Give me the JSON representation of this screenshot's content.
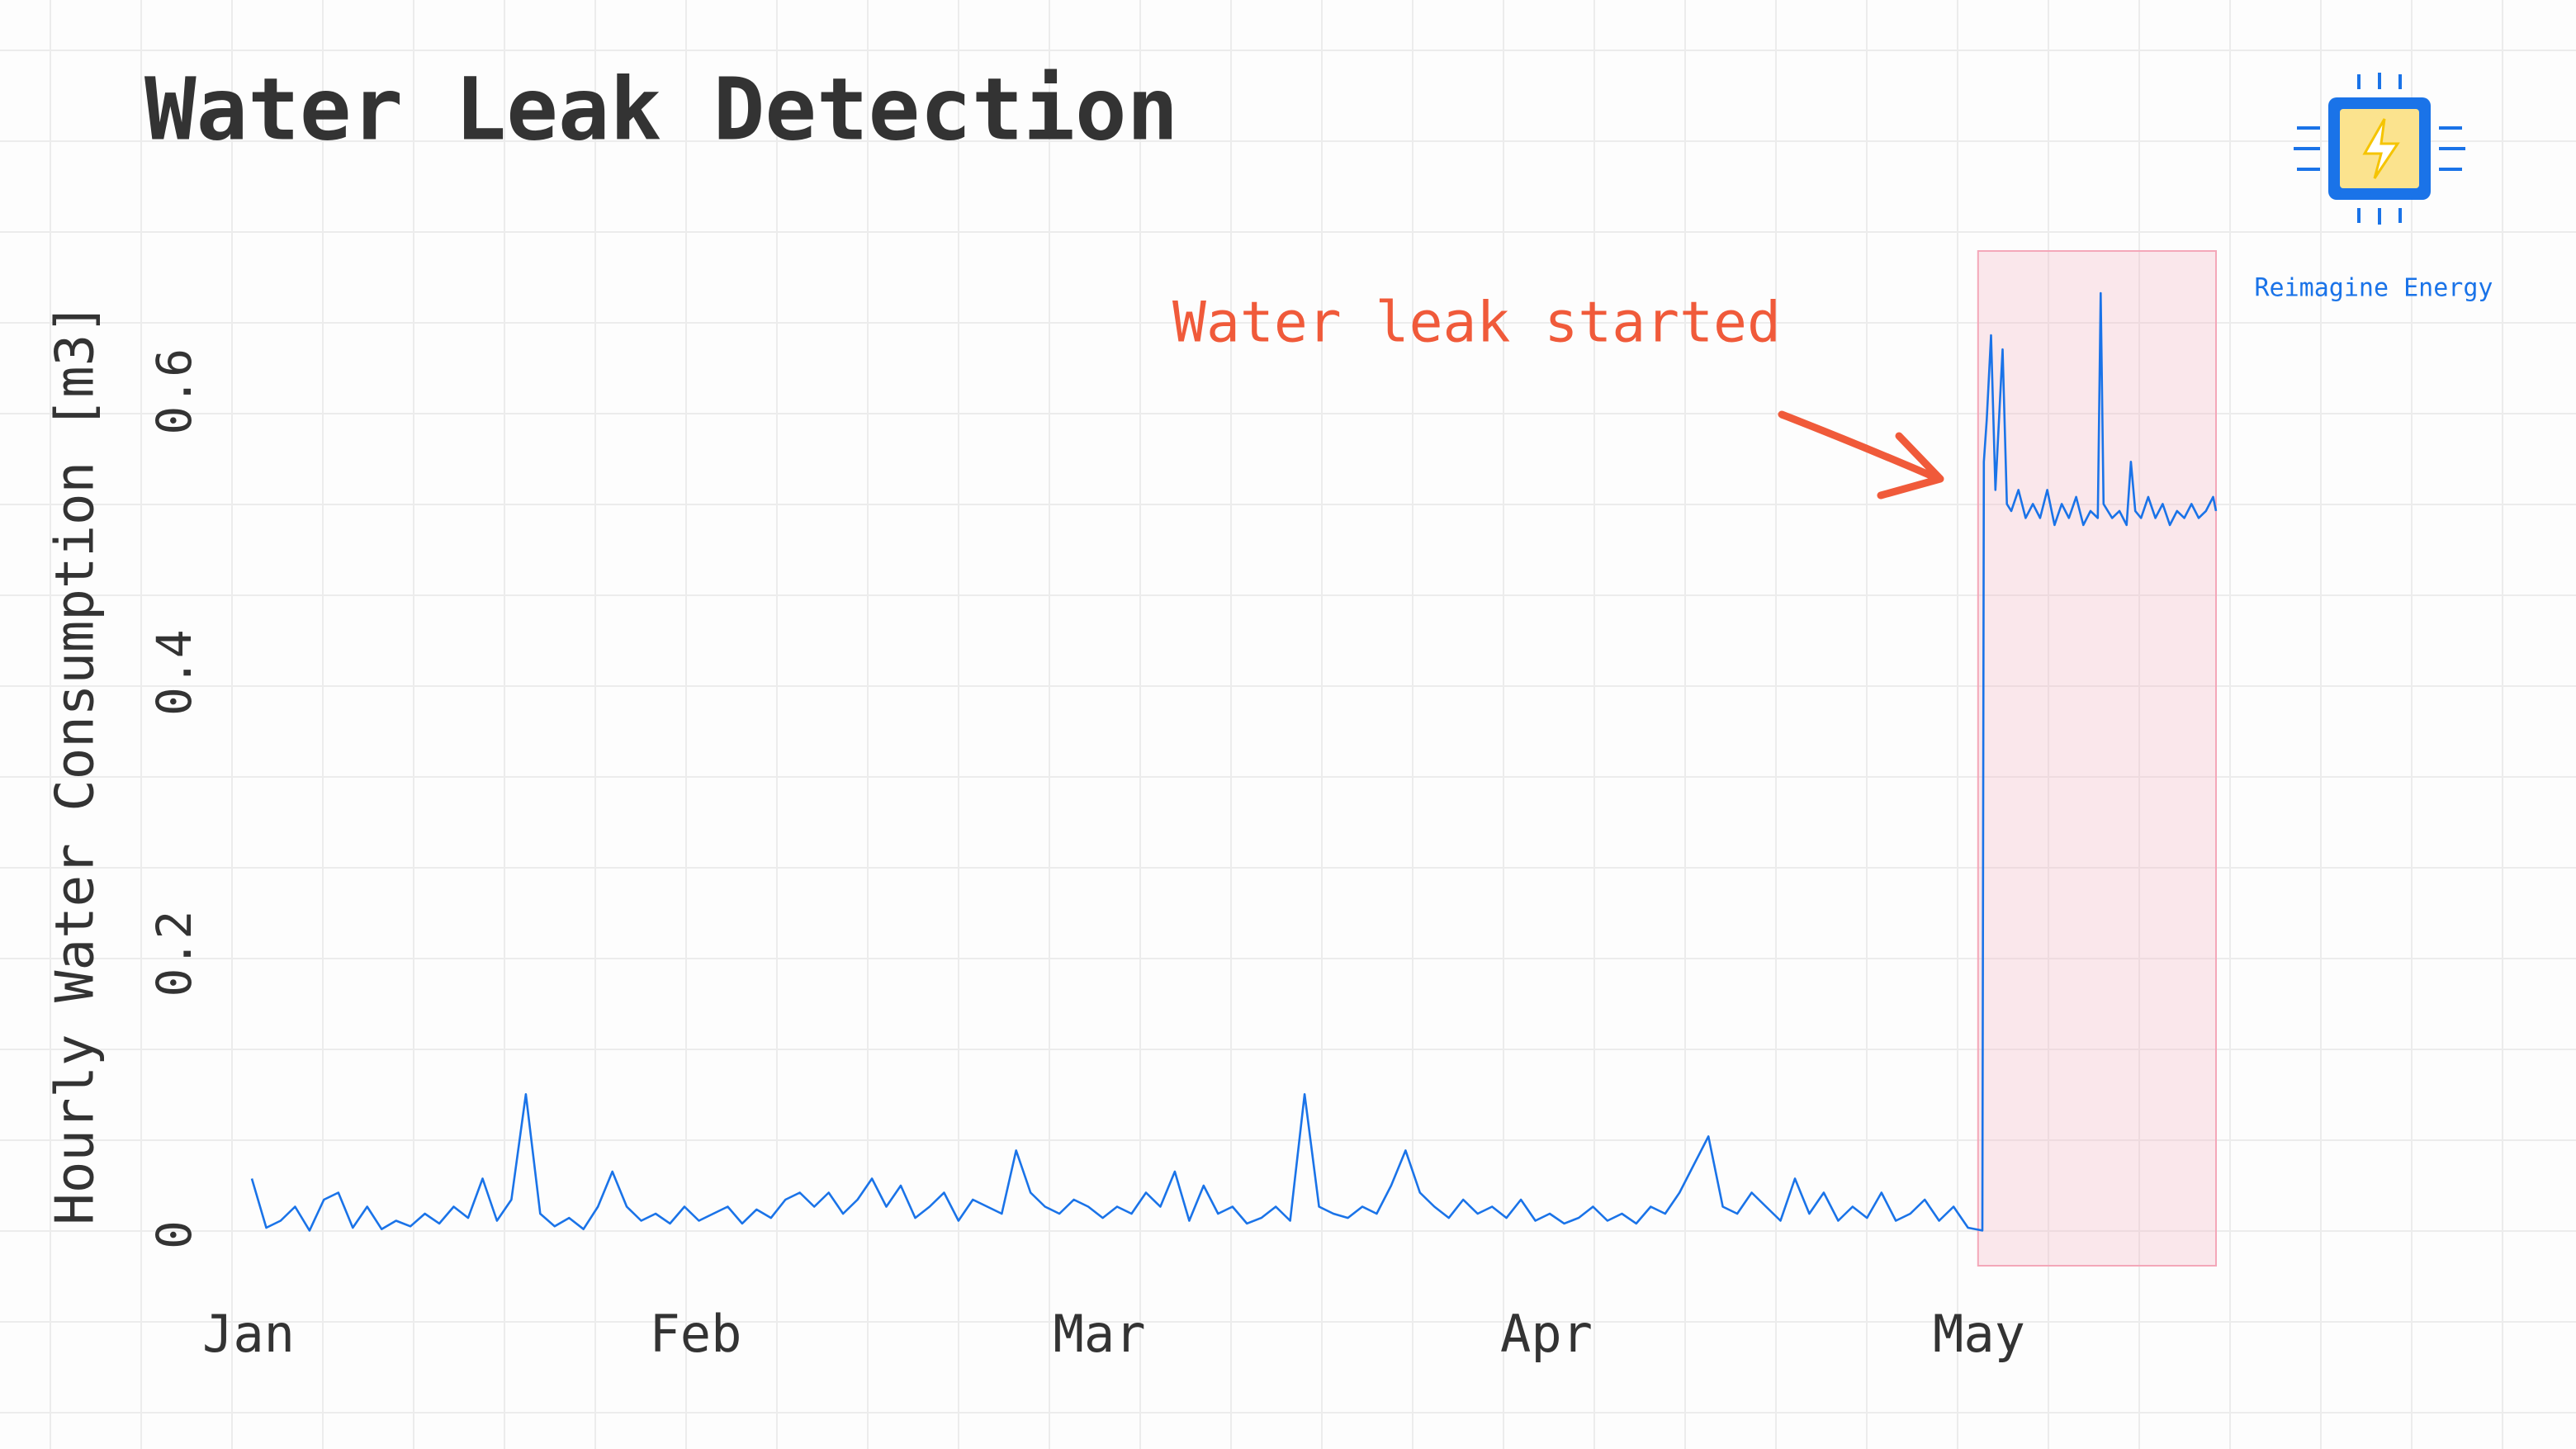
{
  "chart_data": {
    "type": "line",
    "title": "Water Leak Detection",
    "y_label": "Hourly Water Consumption [m3]",
    "annotation": "Water leak started",
    "logo_text": "Reimagine Energy",
    "x": [
      0,
      1,
      2,
      3,
      4,
      5,
      6,
      7,
      8,
      9,
      10,
      11,
      12,
      13,
      14,
      15,
      16,
      17,
      18,
      19,
      20,
      21,
      22,
      23,
      24,
      25,
      26,
      27,
      28,
      29,
      30,
      31,
      32,
      33,
      34,
      35,
      36,
      37,
      38,
      39,
      40,
      41,
      42,
      43,
      44,
      45,
      46,
      47,
      48,
      49,
      50,
      51,
      52,
      53,
      54,
      55,
      56,
      57,
      58,
      59,
      60,
      61,
      62,
      63,
      64,
      65,
      66,
      67,
      68,
      69,
      70,
      71,
      72,
      73,
      74,
      75,
      76,
      77,
      78,
      79,
      80,
      81,
      82,
      83,
      84,
      85,
      86,
      87,
      88,
      89,
      90,
      91,
      92,
      93,
      94,
      95,
      96,
      97,
      98,
      99,
      100,
      101,
      102,
      103,
      104,
      105,
      106,
      107,
      108,
      109,
      110,
      111,
      112,
      113,
      114,
      115,
      116,
      117,
      118,
      119,
      120,
      120.1,
      120.3,
      120.6,
      120.9,
      121.4,
      121.7,
      122,
      122.5,
      123,
      123.5,
      124,
      124.5,
      125,
      125.5,
      126,
      126.5,
      127,
      127.5,
      128,
      128.2,
      128.4,
      129,
      129.5,
      130,
      130.3,
      130.6,
      131,
      131.5,
      132,
      132.5,
      133,
      133.5,
      134,
      134.5,
      135,
      135.5,
      136,
      136.2
    ],
    "series": [
      {
        "color": "#1a73e8",
        "values": [
          0.04,
          0.005,
          0.01,
          0.02,
          0.003,
          0.025,
          0.03,
          0.005,
          0.02,
          0.004,
          0.01,
          0.006,
          0.015,
          0.008,
          0.02,
          0.012,
          0.04,
          0.01,
          0.025,
          0.1,
          0.015,
          0.006,
          0.012,
          0.004,
          0.02,
          0.045,
          0.02,
          0.01,
          0.015,
          0.008,
          0.02,
          0.01,
          0.015,
          0.02,
          0.008,
          0.018,
          0.012,
          0.025,
          0.03,
          0.02,
          0.03,
          0.015,
          0.025,
          0.04,
          0.02,
          0.035,
          0.012,
          0.02,
          0.03,
          0.01,
          0.025,
          0.02,
          0.015,
          0.06,
          0.03,
          0.02,
          0.015,
          0.025,
          0.02,
          0.012,
          0.02,
          0.015,
          0.03,
          0.02,
          0.045,
          0.01,
          0.035,
          0.015,
          0.02,
          0.008,
          0.012,
          0.02,
          0.01,
          0.1,
          0.02,
          0.015,
          0.012,
          0.02,
          0.015,
          0.035,
          0.06,
          0.03,
          0.02,
          0.012,
          0.025,
          0.015,
          0.02,
          0.012,
          0.025,
          0.01,
          0.015,
          0.008,
          0.012,
          0.02,
          0.01,
          0.015,
          0.008,
          0.02,
          0.015,
          0.03,
          0.05,
          0.07,
          0.02,
          0.015,
          0.03,
          0.02,
          0.01,
          0.04,
          0.015,
          0.03,
          0.01,
          0.02,
          0.012,
          0.03,
          0.01,
          0.015,
          0.025,
          0.01,
          0.02,
          0.005,
          0.003,
          0.55,
          0.58,
          0.64,
          0.53,
          0.63,
          0.52,
          0.515,
          0.53,
          0.51,
          0.52,
          0.51,
          0.53,
          0.505,
          0.52,
          0.51,
          0.525,
          0.505,
          0.515,
          0.51,
          0.67,
          0.52,
          0.51,
          0.515,
          0.505,
          0.55,
          0.515,
          0.51,
          0.525,
          0.51,
          0.52,
          0.505,
          0.515,
          0.51,
          0.52,
          0.51,
          0.515,
          0.525,
          0.515
        ]
      }
    ],
    "highlight_range": [
      119.7,
      136.2
    ],
    "highlight_color": "#f4a7b9",
    "annotation_color": "#f05a3a",
    "xlim": [
      0,
      136.2
    ],
    "xticks": [
      {
        "value": 0,
        "label": "Jan"
      },
      {
        "value": 31,
        "label": "Feb"
      },
      {
        "value": 59,
        "label": "Mar"
      },
      {
        "value": 90,
        "label": "Apr"
      },
      {
        "value": 120,
        "label": "May"
      }
    ],
    "ylim": [
      -0.022,
      0.7
    ],
    "yticks": [
      0,
      0.2,
      0.4,
      0.6
    ],
    "grid": false
  }
}
